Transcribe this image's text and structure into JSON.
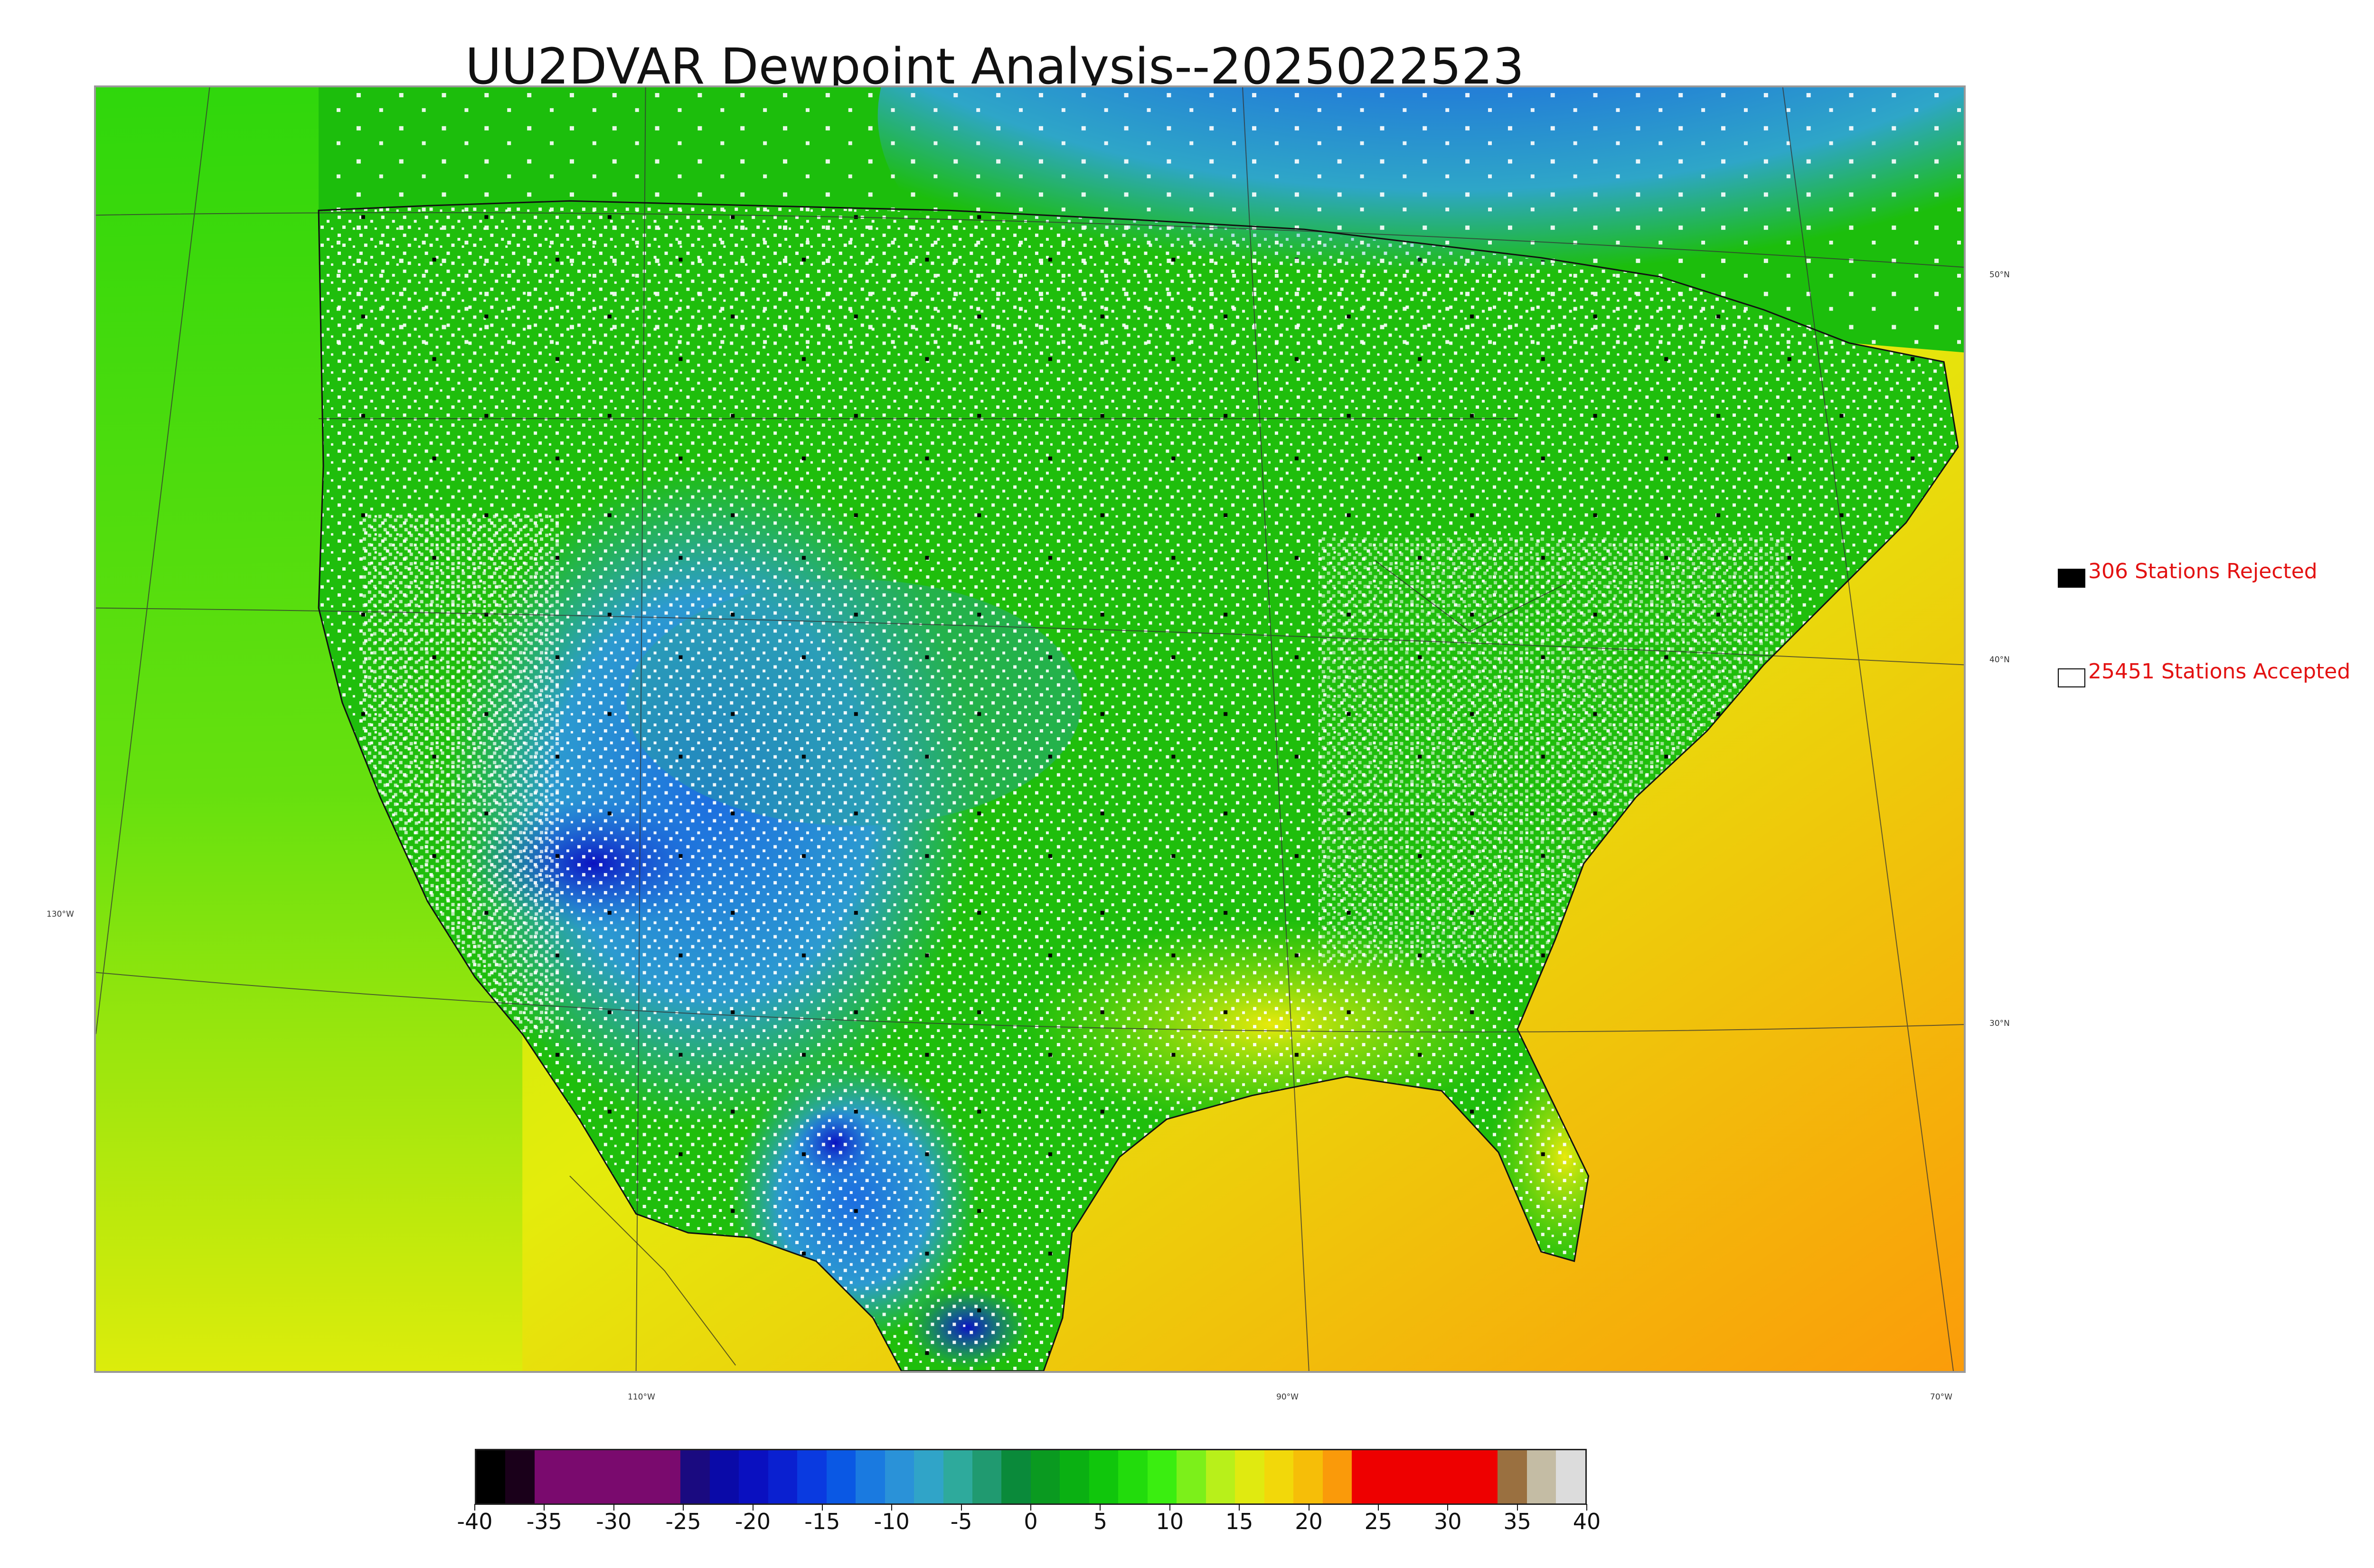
{
  "title": "UU2DVAR Dewpoint Analysis--2025022523",
  "map": {
    "projection": "lambert-conformal",
    "background_field": "dewpoint",
    "lat_labels": [
      "50°N",
      "40°N",
      "30°N"
    ],
    "lon_labels": [
      "130°W",
      "110°W",
      "90°W",
      "70°W"
    ]
  },
  "legend": {
    "rejected": {
      "label": "306 Stations Rejected",
      "swatch_color": "#000000"
    },
    "accepted": {
      "label": "25451 Stations Accepted",
      "swatch_color": "#ffffff"
    }
  },
  "colorbar": {
    "min": -40,
    "max": 40,
    "tick_labels": [
      "-40",
      "-35",
      "-30",
      "-25",
      "-20",
      "-15",
      "-10",
      "-5",
      "0",
      "5",
      "10",
      "15",
      "20",
      "25",
      "30",
      "35",
      "40"
    ],
    "colors": [
      "#000000",
      "#1a001a",
      "#7a0a6e",
      "#7a0a6e",
      "#7a0a6e",
      "#7a0a6e",
      "#7a0a6e",
      "#1a0a80",
      "#0a0aa8",
      "#0a10c0",
      "#0a20d0",
      "#0a3ae0",
      "#0a58e4",
      "#1a7ae0",
      "#2a92d8",
      "#30a4c8",
      "#2eaa9c",
      "#209a70",
      "#0a8a3a",
      "#0a9a20",
      "#0ab012",
      "#10c60c",
      "#22dc0c",
      "#3aee10",
      "#7cf01a",
      "#b8f01a",
      "#e0ea10",
      "#f2d80a",
      "#f6be08",
      "#fa9a0a",
      "#ee0000",
      "#ee0000",
      "#ee0000",
      "#ee0000",
      "#ee0000",
      "#9a7040",
      "#c4bca4",
      "#dcdcdc"
    ]
  }
}
